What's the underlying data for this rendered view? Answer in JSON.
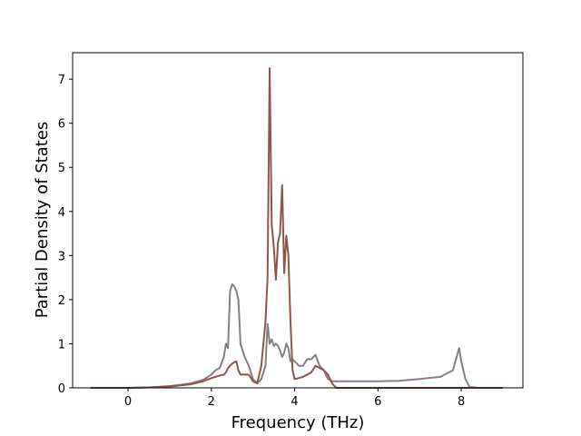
{
  "chart_data": {
    "type": "line",
    "xlabel": "Frequency (THz)",
    "ylabel": "Partial Density of States",
    "x": [
      -0.9,
      0,
      0.5,
      1,
      1.5,
      1.8,
      2,
      2.1,
      2.2,
      2.3,
      2.35,
      2.4,
      2.45,
      2.5,
      2.55,
      2.6,
      2.65,
      2.7,
      2.8,
      2.9,
      3,
      3.1,
      3.2,
      3.3,
      3.35,
      3.4,
      3.45,
      3.5,
      3.55,
      3.6,
      3.65,
      3.7,
      3.75,
      3.8,
      3.85,
      3.9,
      3.95,
      4,
      4.1,
      4.2,
      4.3,
      4.4,
      4.5,
      4.6,
      4.7,
      4.8,
      4.9,
      5,
      5.2,
      5.5,
      6,
      6.5,
      7,
      7.5,
      7.8,
      7.95,
      8,
      8.1,
      8.2,
      8.4,
      9
    ],
    "series": [
      {
        "color": "#857f85",
        "values": [
          0,
          0,
          0.01,
          0.04,
          0.1,
          0.18,
          0.3,
          0.4,
          0.45,
          0.7,
          1.0,
          0.9,
          2.2,
          2.35,
          2.3,
          2.2,
          2.0,
          1.0,
          0.7,
          0.5,
          0.2,
          0.1,
          0.2,
          0.5,
          1.45,
          1.0,
          1.1,
          0.95,
          1.0,
          0.95,
          0.85,
          0.7,
          0.8,
          1.0,
          0.9,
          0.6,
          0.65,
          0.6,
          0.5,
          0.5,
          0.65,
          0.65,
          0.75,
          0.5,
          0.4,
          0.2,
          0.15,
          0.15,
          0.15,
          0.15,
          0.15,
          0.16,
          0.2,
          0.25,
          0.4,
          0.9,
          0.6,
          0.2,
          0.02,
          0,
          0
        ]
      },
      {
        "color": "#8c564b",
        "values": [
          0,
          0,
          0.01,
          0.03,
          0.08,
          0.15,
          0.22,
          0.25,
          0.28,
          0.3,
          0.35,
          0.45,
          0.5,
          0.55,
          0.58,
          0.6,
          0.4,
          0.3,
          0.3,
          0.3,
          0.15,
          0.1,
          0.5,
          1.5,
          2.5,
          7.25,
          3.7,
          3.2,
          2.45,
          3.3,
          3.5,
          4.6,
          2.6,
          3.45,
          3.0,
          1.5,
          0.4,
          0.2,
          0.22,
          0.25,
          0.3,
          0.35,
          0.5,
          0.45,
          0.4,
          0.3,
          0.1,
          0,
          0,
          0,
          0,
          0,
          0,
          0,
          0,
          0,
          0,
          0,
          0,
          0,
          0
        ]
      }
    ],
    "xlim": [
      -1.33,
      9.48
    ],
    "ylim": [
      0,
      7.6
    ],
    "xticks": [
      0,
      2,
      4,
      6,
      8
    ],
    "yticks": [
      0,
      1,
      2,
      3,
      4,
      5,
      6,
      7
    ]
  }
}
